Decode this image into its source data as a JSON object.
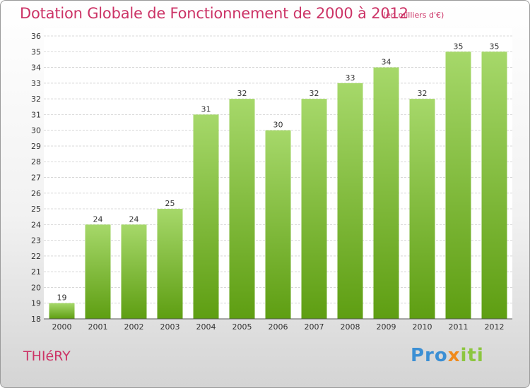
{
  "title": "Dotation Globale de Fonctionnement de 2000 à 2012",
  "unit": "(en milliers d'€)",
  "commune": "THIéRY",
  "logo": [
    "Pro",
    "x",
    "iti"
  ],
  "colors": {
    "bar_top": "#a6d86a",
    "bar_bottom": "#5e9e12",
    "title": "#cc3366"
  },
  "chart_data": {
    "type": "bar",
    "categories": [
      "2000",
      "2001",
      "2002",
      "2003",
      "2004",
      "2005",
      "2006",
      "2007",
      "2008",
      "2009",
      "2010",
      "2011",
      "2012"
    ],
    "values": [
      19,
      24,
      24,
      25,
      31,
      32,
      30,
      32,
      33,
      34,
      32,
      35,
      35
    ],
    "ylim": [
      18,
      36
    ],
    "yticks": [
      18,
      19,
      20,
      21,
      22,
      23,
      24,
      25,
      26,
      27,
      28,
      29,
      30,
      31,
      32,
      33,
      34,
      35,
      36
    ],
    "grid": true,
    "data_labels": true
  }
}
